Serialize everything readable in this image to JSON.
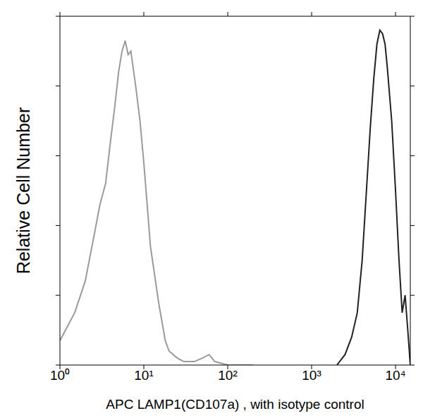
{
  "chart_data": {
    "type": "line",
    "xlabel": "APC LAMP1(CD107a) , with isotype control",
    "ylabel": "Relative Cell Number",
    "log": "x",
    "grid": false,
    "tick_labels": "x",
    "xlim": [
      1,
      15000
    ],
    "xticks": [
      {
        "value": 1,
        "label": "10⁰"
      },
      {
        "value": 10,
        "label": "10¹"
      },
      {
        "value": 100,
        "label": "10²"
      },
      {
        "value": 1000,
        "label": "10³"
      },
      {
        "value": 10000,
        "label": "10⁴"
      }
    ],
    "ylim": [
      0,
      100
    ],
    "yticks": [
      0,
      20,
      40,
      60,
      80,
      100
    ],
    "series": [
      {
        "color": "#9a9a9a",
        "x": [
          1,
          1.5,
          2,
          2.5,
          3,
          3.5,
          4,
          4.5,
          5,
          5.5,
          6,
          6.5,
          7,
          8,
          9,
          10,
          12,
          15,
          18,
          20,
          25,
          30,
          40,
          50,
          60,
          70,
          100,
          200
        ],
        "values": [
          7,
          15,
          24,
          36,
          46,
          52,
          64,
          74,
          84,
          90,
          93,
          89,
          90,
          80,
          70,
          58,
          34,
          18,
          7,
          4,
          2,
          1,
          1,
          2,
          3,
          1,
          0,
          0
        ]
      },
      {
        "color": "#222222",
        "x": [
          2000,
          2500,
          3000,
          3500,
          4000,
          4500,
          5000,
          5500,
          6000,
          6500,
          7000,
          7500,
          8000,
          9000,
          10000,
          11000,
          12000,
          13000,
          14000,
          15000
        ],
        "values": [
          0,
          3,
          8,
          15,
          30,
          50,
          68,
          82,
          92,
          96,
          95,
          92,
          85,
          70,
          50,
          30,
          15,
          20,
          10,
          0
        ]
      }
    ]
  }
}
